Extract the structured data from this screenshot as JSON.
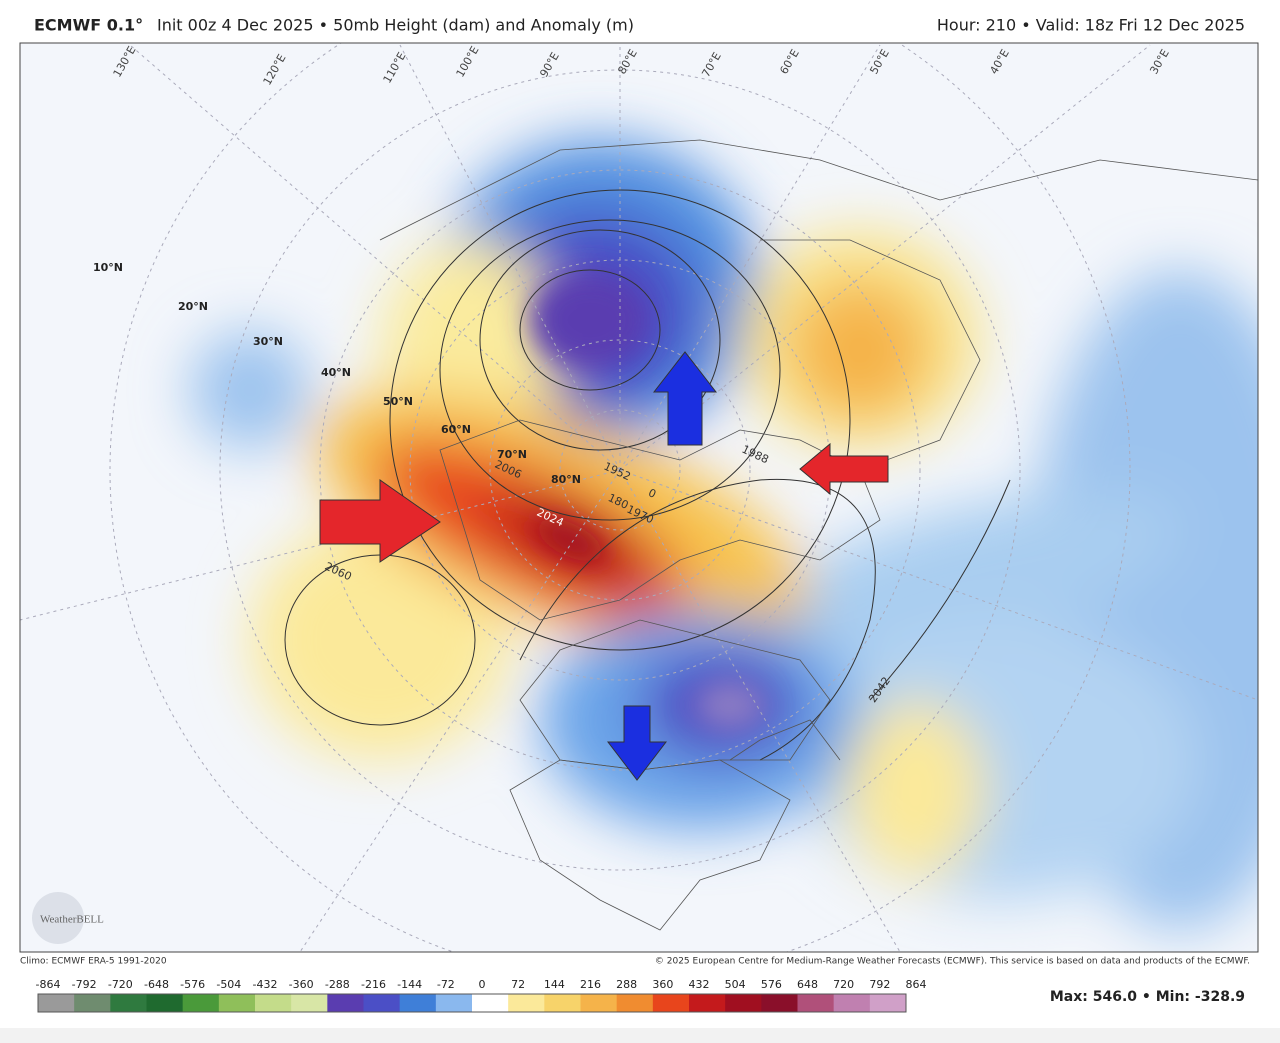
{
  "header": {
    "model": "ECMWF 0.1°",
    "title": "Init 00z 4 Dec 2025 • 50mb Height (dam) and Anomaly (m)",
    "valid": "Hour: 210 • Valid: 18z Fri 12 Dec 2025"
  },
  "map": {
    "latitude_labels": [
      "10°N",
      "20°N",
      "30°N",
      "40°N",
      "50°N",
      "60°N",
      "70°N",
      "80°N"
    ],
    "longitude_labels": [
      "130°E",
      "120°E",
      "110°E",
      "100°E",
      "90°E",
      "80°E",
      "70°E",
      "60°E",
      "50°E",
      "40°E",
      "30°E"
    ],
    "contour_labels": [
      "1952",
      "1970",
      "1988",
      "2006",
      "2024",
      "2042",
      "2060",
      "0",
      "180"
    ],
    "logo": "WeatherBELL"
  },
  "footer": {
    "climo": "Climo: ECMWF ERA-5 1991-2020",
    "copyright": "© 2025 European Centre for Medium-Range Weather Forecasts (ECMWF). This service is based on data and products of the ECMWF.",
    "colorbar": [
      -864,
      -792,
      -720,
      -648,
      -576,
      -504,
      -432,
      -360,
      -288,
      -216,
      -144,
      -72,
      0,
      72,
      144,
      216,
      288,
      360,
      432,
      504,
      576,
      648,
      720,
      792,
      864
    ],
    "stats": "Max: 546.0 • Min: -328.9"
  }
}
